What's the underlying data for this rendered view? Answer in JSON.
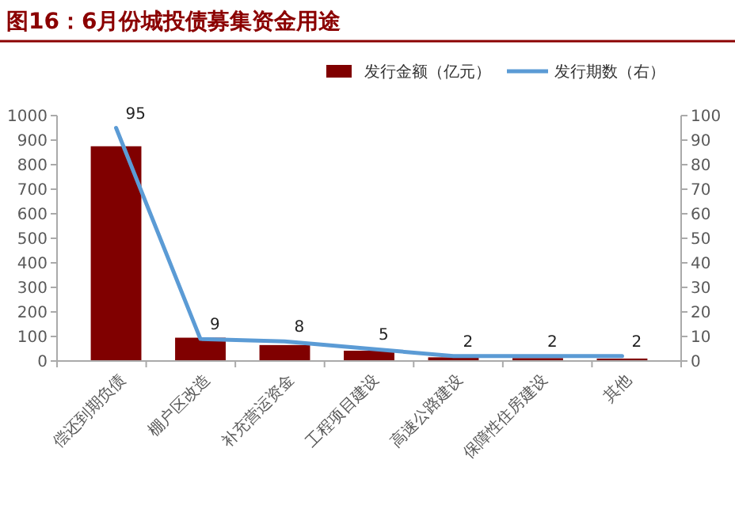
{
  "chart_data": {
    "type": "bar",
    "title": "图16：6月份城投债募集资金用途",
    "categories": [
      "偿还到期负债",
      "棚户区改造",
      "补充营运资金",
      "工程项目建设",
      "高速公路建设",
      "保障性住房建设",
      "其他"
    ],
    "series": [
      {
        "name": "发行金额（亿元）",
        "color": "#800000",
        "values": [
          875,
          95,
          65,
          42,
          15,
          12,
          10
        ]
      },
      {
        "name": "发行期数（右）",
        "type": "line",
        "axis": "y2",
        "color": "#5b9bd5",
        "values": [
          95,
          9,
          8,
          5,
          2,
          2,
          2
        ],
        "value_labels": [
          "95",
          "9",
          "8",
          "5",
          "2",
          "2",
          "2"
        ]
      }
    ],
    "ylim": [
      0,
      1000
    ],
    "yticks": [
      0,
      100,
      200,
      300,
      400,
      500,
      600,
      700,
      800,
      900,
      1000
    ],
    "y2lim": [
      0,
      100
    ],
    "y2ticks": [
      0,
      10,
      20,
      30,
      40,
      50,
      60,
      70,
      80,
      90,
      100
    ],
    "legend": "top right",
    "marker": "none"
  }
}
